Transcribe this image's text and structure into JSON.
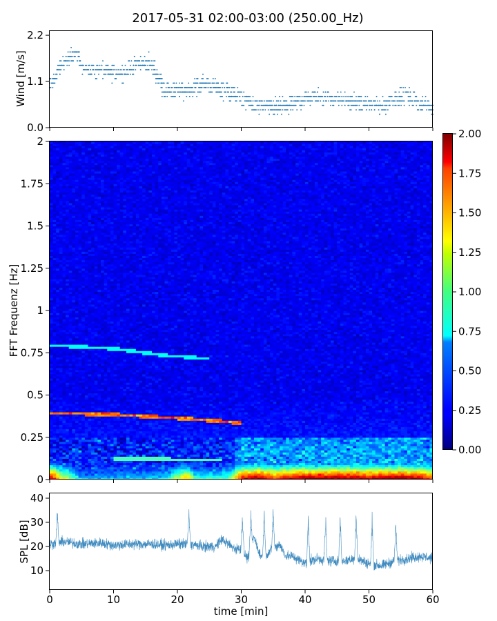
{
  "title": "2017-05-31 02:00-03:00 (250.00_Hz)",
  "colors": {
    "series": "#1f77b4",
    "background": "#ffffff",
    "spectrogram_base": "#0a1aa8"
  },
  "chart_data": [
    {
      "id": "wind",
      "type": "scatter",
      "xlabel": "",
      "ylabel": "Wind [m/s]",
      "xlim": [
        0,
        60
      ],
      "ylim": [
        0,
        2.3
      ],
      "yticks": [
        0.0,
        1.1,
        2.2
      ],
      "ytick_labels": [
        "0.0",
        "1.1",
        "2.2"
      ],
      "marker": "small dot",
      "x_profile_min": [
        0,
        2,
        4,
        6,
        8,
        10,
        12,
        14,
        16,
        18,
        20,
        22,
        24,
        26,
        28,
        30,
        32,
        34,
        36,
        38,
        40,
        42,
        44,
        46,
        48,
        50,
        52,
        54,
        56,
        58,
        60
      ],
      "y_profile": [
        0.95,
        1.55,
        1.75,
        1.35,
        1.35,
        1.3,
        1.35,
        1.55,
        1.5,
        0.9,
        0.85,
        0.9,
        1.05,
        0.95,
        0.85,
        0.7,
        0.55,
        0.5,
        0.5,
        0.55,
        0.7,
        0.75,
        0.7,
        0.65,
        0.6,
        0.55,
        0.5,
        0.7,
        0.75,
        0.6,
        0.45
      ]
    },
    {
      "id": "spectrogram",
      "type": "heatmap",
      "xlabel": "",
      "ylabel": "FFT Frequenz [Hz]",
      "xlim": [
        0,
        60
      ],
      "ylim": [
        0,
        2
      ],
      "yticks": [
        0,
        0.25,
        0.5,
        0.75,
        1,
        1.25,
        1.5,
        1.75,
        2
      ],
      "ytick_labels": [
        "0",
        "0.25",
        "0.5",
        "0.75",
        "1",
        "1.25",
        "1.5",
        "1.75",
        "2"
      ],
      "colormap": "jet",
      "colorbar": {
        "range": [
          0.0,
          2.0
        ],
        "ticks": [
          0.0,
          0.25,
          0.5,
          0.75,
          1.0,
          1.25,
          1.5,
          1.75,
          2.0
        ],
        "tick_labels": [
          "0.00",
          "0.25",
          "0.50",
          "0.75",
          "1.00",
          "1.25",
          "1.50",
          "1.75",
          "2.00"
        ]
      },
      "tonal_lines": [
        {
          "time_min": [
            0,
            10,
            20,
            27,
            30
          ],
          "freq_hz": [
            0.39,
            0.38,
            0.36,
            0.34,
            0.33
          ]
        },
        {
          "time_min": [
            0,
            10,
            18,
            25
          ],
          "freq_hz": [
            0.79,
            0.77,
            0.73,
            0.71
          ]
        },
        {
          "time_min": [
            10,
            20,
            27
          ],
          "freq_hz": [
            0.12,
            0.115,
            0.11
          ]
        }
      ],
      "low_freq_energy": {
        "note_values": "intensity near 0-0.1 Hz by minute",
        "time_min": [
          0,
          1,
          5,
          10,
          18,
          21,
          22,
          23,
          28,
          30,
          33,
          35,
          38,
          40,
          45,
          50,
          55,
          58,
          60
        ],
        "intensity": [
          2.0,
          1.6,
          0.6,
          0.6,
          0.7,
          1.4,
          1.3,
          0.8,
          0.9,
          1.8,
          2.0,
          1.7,
          1.9,
          2.0,
          2.0,
          1.9,
          2.0,
          1.9,
          1.7
        ]
      }
    },
    {
      "id": "spl",
      "type": "line",
      "xlabel": "time [min]",
      "ylabel": "SPL [dB]",
      "xlim": [
        0,
        60
      ],
      "ylim": [
        2,
        42
      ],
      "xticks": [
        0,
        10,
        20,
        30,
        40,
        50,
        60
      ],
      "xtick_labels": [
        "0",
        "10",
        "20",
        "30",
        "40",
        "50",
        "60"
      ],
      "yticks": [
        10,
        20,
        30,
        40
      ],
      "ytick_labels": [
        "10",
        "20",
        "30",
        "40"
      ],
      "x_profile_min": [
        0,
        2,
        5,
        8,
        10,
        13,
        16,
        18,
        20,
        22,
        24,
        26,
        27,
        28,
        29,
        30,
        31,
        32,
        33,
        34,
        35,
        36,
        37,
        38,
        40,
        42,
        44,
        46,
        48,
        50,
        52,
        54,
        56,
        58,
        60
      ],
      "y_center": [
        21,
        22,
        21,
        21.5,
        20.5,
        21,
        21,
        20.5,
        21,
        21,
        20,
        20,
        23,
        21,
        19,
        19,
        15,
        24,
        16,
        17,
        19,
        21,
        16,
        16,
        13,
        15,
        14,
        14,
        15,
        13,
        12,
        14,
        15,
        16,
        15
      ],
      "spikes": [
        {
          "x": 1.2,
          "y": 37
        },
        {
          "x": 21.8,
          "y": 36
        },
        {
          "x": 30.2,
          "y": 35
        },
        {
          "x": 31.5,
          "y": 36
        },
        {
          "x": 33.6,
          "y": 36
        },
        {
          "x": 35.0,
          "y": 38
        },
        {
          "x": 40.5,
          "y": 35
        },
        {
          "x": 43.2,
          "y": 36
        },
        {
          "x": 45.5,
          "y": 35
        },
        {
          "x": 48.0,
          "y": 37
        },
        {
          "x": 50.5,
          "y": 35
        },
        {
          "x": 54.2,
          "y": 34
        }
      ]
    }
  ]
}
